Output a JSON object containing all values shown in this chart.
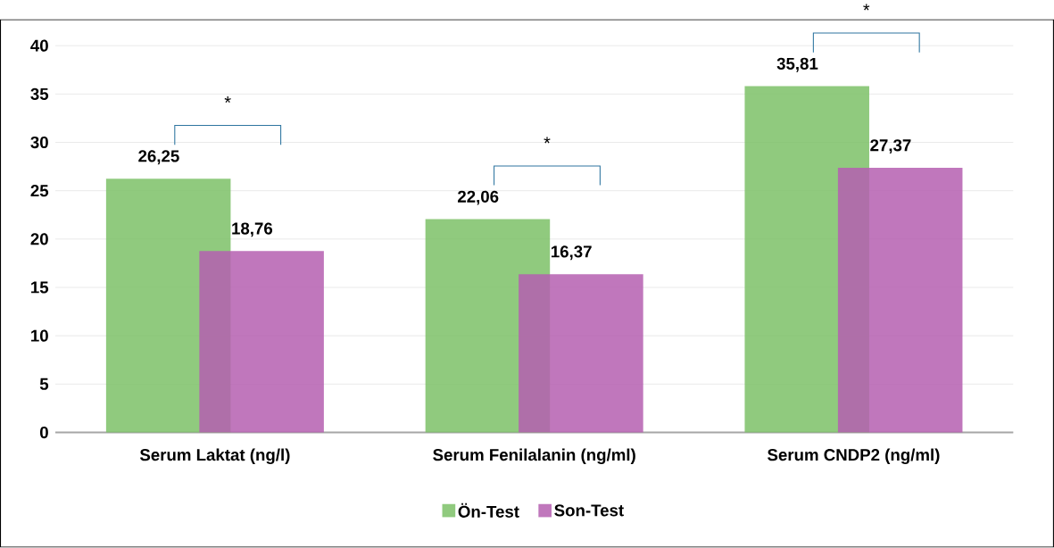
{
  "chart_data": {
    "type": "bar",
    "categories": [
      "Serum Laktat (ng/l)",
      "Serum Fenilalanin (ng/ml)",
      "Serum CNDP2 (ng/ml)"
    ],
    "series": [
      {
        "name": "Ön-Test",
        "color": "#7cc167",
        "values": [
          26.25,
          22.06,
          35.81
        ],
        "value_labels": [
          "26,25",
          "22,06",
          "35,81"
        ]
      },
      {
        "name": "Son-Test",
        "color": "#b55fb0",
        "values": [
          18.76,
          16.37,
          27.37
        ],
        "value_labels": [
          "18,76",
          "16,37",
          "27,37"
        ]
      }
    ],
    "ylim": [
      0,
      40
    ],
    "yticks": [
      0,
      5,
      10,
      15,
      20,
      25,
      30,
      35,
      40
    ],
    "grid": "y",
    "legend": "bottom",
    "annotations": [
      "*",
      "*",
      "*"
    ]
  }
}
